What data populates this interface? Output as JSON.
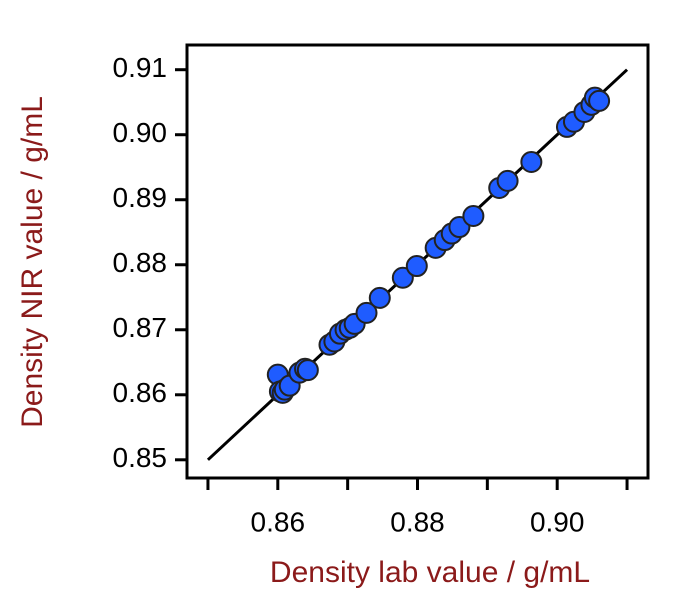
{
  "chart_data": {
    "type": "scatter",
    "x_label": "Density lab value / g/mL",
    "y_label": "Density NIR value / g/mL",
    "x": [
      0.86,
      0.8603,
      0.8607,
      0.861,
      0.8617,
      0.8631,
      0.8639,
      0.8643,
      0.8674,
      0.8681,
      0.8689,
      0.8697,
      0.8703,
      0.871,
      0.8727,
      0.8746,
      0.8779,
      0.8799,
      0.8826,
      0.8839,
      0.8849,
      0.886,
      0.888,
      0.8917,
      0.8929,
      0.8963,
      0.9014,
      0.9024,
      0.9039,
      0.9049,
      0.9054,
      0.906
    ],
    "values": [
      0.8631,
      0.8605,
      0.8603,
      0.8608,
      0.8614,
      0.8634,
      0.864,
      0.8638,
      0.8677,
      0.8682,
      0.8694,
      0.87,
      0.8703,
      0.8709,
      0.8726,
      0.8749,
      0.878,
      0.8798,
      0.8826,
      0.8838,
      0.8848,
      0.8858,
      0.8875,
      0.8918,
      0.8929,
      0.8958,
      0.9012,
      0.902,
      0.9035,
      0.9046,
      0.9057,
      0.9052
    ],
    "color": "#1f5cff",
    "reference_line": [
      0.85,
      0.91
    ],
    "xlim": [
      0.847,
      0.913
    ],
    "ylim": [
      0.8472,
      0.9138
    ],
    "xticks": [
      0.86,
      0.88,
      {
        "value": 0.9,
        "label": "0.90"
      }
    ],
    "xminor_ticks": [
      0.85,
      0.87,
      0.89,
      0.91
    ],
    "yticks": [
      0.85,
      0.86,
      0.87,
      0.88,
      0.89,
      {
        "value": 0.9,
        "label": "0.90"
      },
      0.91
    ],
    "grid": false
  }
}
